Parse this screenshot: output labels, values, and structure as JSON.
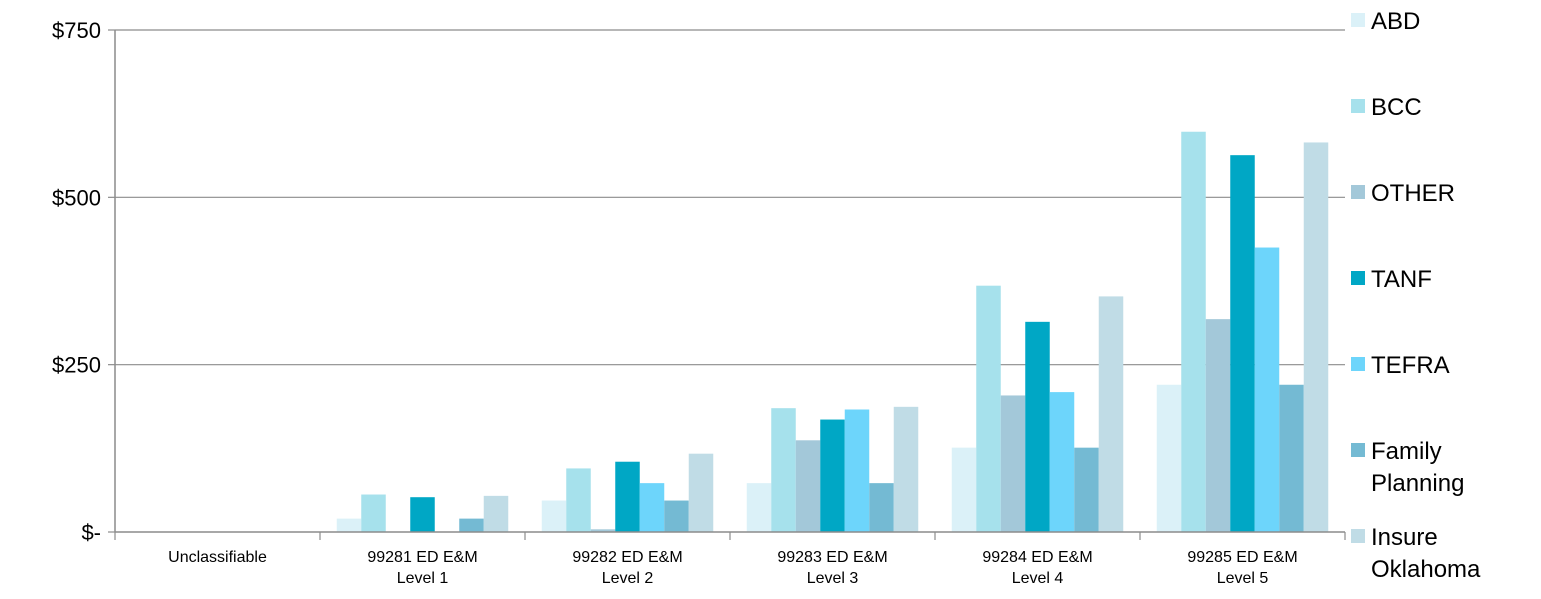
{
  "chart_data": {
    "type": "bar",
    "title": "",
    "xlabel": "",
    "ylabel": "",
    "ylim": [
      0,
      750
    ],
    "yticks": [
      {
        "value": 0,
        "label": "$-"
      },
      {
        "value": 250,
        "label": "$250"
      },
      {
        "value": 500,
        "label": "$500"
      },
      {
        "value": 750,
        "label": "$750"
      }
    ],
    "grid": true,
    "legend_position": "right",
    "categories": [
      [
        "Unclassifiable"
      ],
      [
        "99281 ED E&M",
        "Level 1"
      ],
      [
        "99282 ED E&M",
        "Level 2"
      ],
      [
        "99283 ED E&M",
        "Level 3"
      ],
      [
        "99284 ED E&M",
        "Level 4"
      ],
      [
        "99285 ED E&M",
        "Level 5"
      ]
    ],
    "series": [
      {
        "name": "ABD",
        "legend_lines": [
          "ABD"
        ],
        "color": "#dbf1f8",
        "values": [
          0,
          20,
          47,
          73,
          126,
          220
        ]
      },
      {
        "name": "BCC",
        "legend_lines": [
          "BCC"
        ],
        "color": "#a6e1ec",
        "values": [
          0,
          56,
          95,
          185,
          368,
          598
        ]
      },
      {
        "name": "OTHER",
        "legend_lines": [
          "OTHER"
        ],
        "color": "#a3c8d9",
        "values": [
          0,
          0,
          4,
          137,
          204,
          318
        ]
      },
      {
        "name": "TANF",
        "legend_lines": [
          "TANF"
        ],
        "color": "#00a7c5",
        "values": [
          0,
          52,
          105,
          168,
          314,
          563
        ]
      },
      {
        "name": "TEFRA",
        "legend_lines": [
          "TEFRA"
        ],
        "color": "#6dd5fb",
        "values": [
          0,
          0,
          73,
          183,
          209,
          425
        ]
      },
      {
        "name": "Family Planning",
        "legend_lines": [
          "Family",
          "Planning"
        ],
        "color": "#74bad3",
        "values": [
          0,
          20,
          47,
          73,
          126,
          220
        ]
      },
      {
        "name": "Insure Oklahoma",
        "legend_lines": [
          "Insure",
          "Oklahoma"
        ],
        "color": "#c0dce6",
        "values": [
          0,
          54,
          117,
          187,
          352,
          582
        ]
      }
    ]
  }
}
